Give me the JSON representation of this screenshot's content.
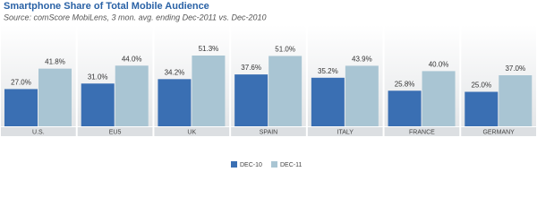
{
  "chart_data": {
    "type": "bar",
    "title": "Smartphone Share of Total Mobile Audience",
    "subtitle": "Source: comScore MobiLens, 3 mon. avg. ending Dec-2011 vs. Dec-2010",
    "categories": [
      "U.S.",
      "EU5",
      "UK",
      "SPAIN",
      "ITALY",
      "FRANCE",
      "GERMANY"
    ],
    "series": [
      {
        "name": "DEC-10",
        "color": "#3a6fb3",
        "values": [
          27.0,
          31.0,
          34.2,
          37.6,
          35.2,
          25.8,
          25.0
        ],
        "value_labels": [
          "27.0%",
          "31.0%",
          "34.2%",
          "37.6%",
          "35.2%",
          "25.8%",
          "25.0%"
        ]
      },
      {
        "name": "DEC-11",
        "color": "#a9c5d3",
        "values": [
          41.8,
          44.0,
          51.3,
          51.0,
          43.9,
          40.0,
          37.0
        ],
        "value_labels": [
          "41.8%",
          "44.0%",
          "51.3%",
          "51.0%",
          "43.9%",
          "40.0%",
          "37.0%"
        ]
      }
    ]
  }
}
